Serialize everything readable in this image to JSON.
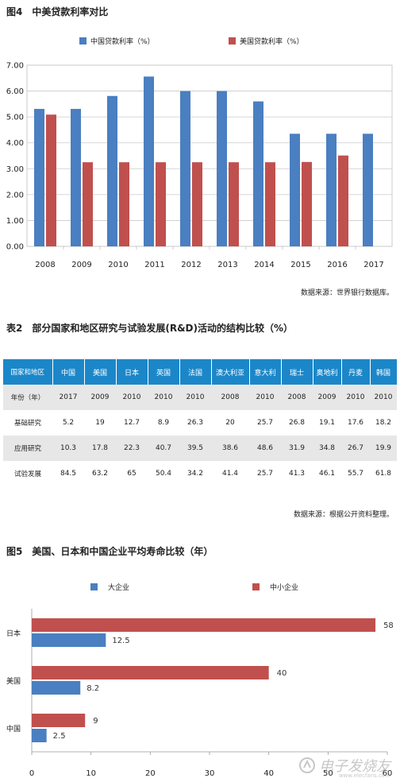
{
  "chart1": {
    "title": "图4　中美贷款利率对比",
    "source": "数据来源：世界银行数据库。",
    "chart_data": {
      "type": "bar",
      "categories": [
        "2008",
        "2009",
        "2010",
        "2011",
        "2012",
        "2013",
        "2014",
        "2015",
        "2016",
        "2017"
      ],
      "series": [
        {
          "name": "中国贷款利率（%）",
          "color": "#4a7fc1",
          "values": [
            5.31,
            5.31,
            5.81,
            6.56,
            6.0,
            6.0,
            5.6,
            4.35,
            4.35,
            4.35
          ]
        },
        {
          "name": "美国贷款利率（%）",
          "color": "#c0504d",
          "values": [
            5.09,
            3.25,
            3.25,
            3.25,
            3.25,
            3.25,
            3.25,
            3.26,
            3.51,
            null
          ]
        }
      ],
      "yticks": [
        "0.00",
        "1.00",
        "2.00",
        "3.00",
        "4.00",
        "5.00",
        "6.00",
        "7.00"
      ],
      "ylim": [
        0,
        7
      ],
      "legend": "top"
    }
  },
  "table": {
    "title": "表2　部分国家和地区研究与试验发展(R&D)活动的结构比较（%）",
    "source": "数据来源：根据公开资料整理。",
    "header": [
      "国家和地区",
      "中国",
      "美国",
      "日本",
      "英国",
      "法国",
      "澳大利亚",
      "意大利",
      "瑞士",
      "奥地利",
      "丹麦",
      "韩国"
    ],
    "rows": [
      [
        "年份（年）",
        "2017",
        "2009",
        "2010",
        "2010",
        "2010",
        "2008",
        "2010",
        "2008",
        "2009",
        "2010",
        "2010"
      ],
      [
        "基础研究",
        "5.2",
        "19",
        "12.7",
        "8.9",
        "26.3",
        "20",
        "25.7",
        "26.8",
        "19.1",
        "17.6",
        "18.2"
      ],
      [
        "应用研究",
        "10.3",
        "17.8",
        "22.3",
        "40.7",
        "39.5",
        "38.6",
        "48.6",
        "31.9",
        "34.8",
        "26.7",
        "19.9"
      ],
      [
        "试验发展",
        "84.5",
        "63.2",
        "65",
        "50.4",
        "34.2",
        "41.4",
        "25.7",
        "41.3",
        "46.1",
        "55.7",
        "61.8"
      ]
    ]
  },
  "chart2": {
    "title": "图5　美国、日本和中国企业平均寿命比较（年）",
    "chart_data": {
      "type": "bar",
      "orientation": "horizontal",
      "categories": [
        "日本",
        "美国",
        "中国"
      ],
      "series": [
        {
          "name": "大企业",
          "color": "#4a7fc1",
          "values": [
            12.5,
            8.2,
            2.5
          ]
        },
        {
          "name": "中小企业",
          "color": "#c0504d",
          "values": [
            58,
            40,
            9
          ]
        }
      ],
      "xticks": [
        "0",
        "10",
        "20",
        "30",
        "40",
        "50",
        "60"
      ],
      "xlim": [
        0,
        60
      ],
      "legend": "top"
    }
  },
  "watermark": {
    "text": "电子发烧友",
    "url": "www.elecfans.com"
  }
}
